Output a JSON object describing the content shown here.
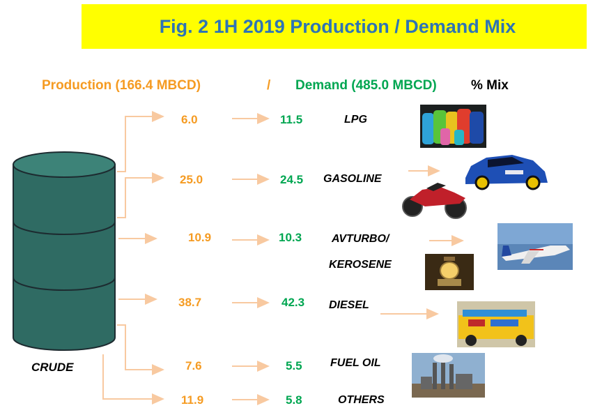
{
  "title": "Fig. 2  1H 2019 Production / Demand Mix",
  "header": {
    "production": "Production (166.4 MBCD)",
    "slash": "/",
    "demand": "Demand (485.0 MBCD)",
    "mix": "% Mix"
  },
  "crude_label": "CRUDE",
  "colors": {
    "production": "#f59b22",
    "demand": "#00a651",
    "arrow": "#f8c9a0",
    "barrel": "#2f6b63",
    "title_bg": "#ffff00",
    "title_text": "#2e74b5"
  },
  "rows": [
    {
      "product": "LPG",
      "production": "6.0",
      "demand": "11.5"
    },
    {
      "product": "GASOLINE",
      "production": "25.0",
      "demand": "24.5"
    },
    {
      "product": "AVTURBO/",
      "product_line2": "KEROSENE",
      "production": "10.9",
      "demand": "10.3"
    },
    {
      "product": "DIESEL",
      "production": "38.7",
      "demand": "42.3"
    },
    {
      "product": "FUEL OIL",
      "production": "7.6",
      "demand": "5.5"
    },
    {
      "product": "OTHERS",
      "production": "11.9",
      "demand": "5.8"
    }
  ],
  "images": {
    "lpg": "lpg-cylinders-icon",
    "car": "rally-car-icon",
    "motorcycle": "motorcycle-icon",
    "plane": "airplane-icon",
    "lantern": "kerosene-lantern-icon",
    "jeepney": "jeepney-icon",
    "powerplant": "power-plant-icon"
  }
}
